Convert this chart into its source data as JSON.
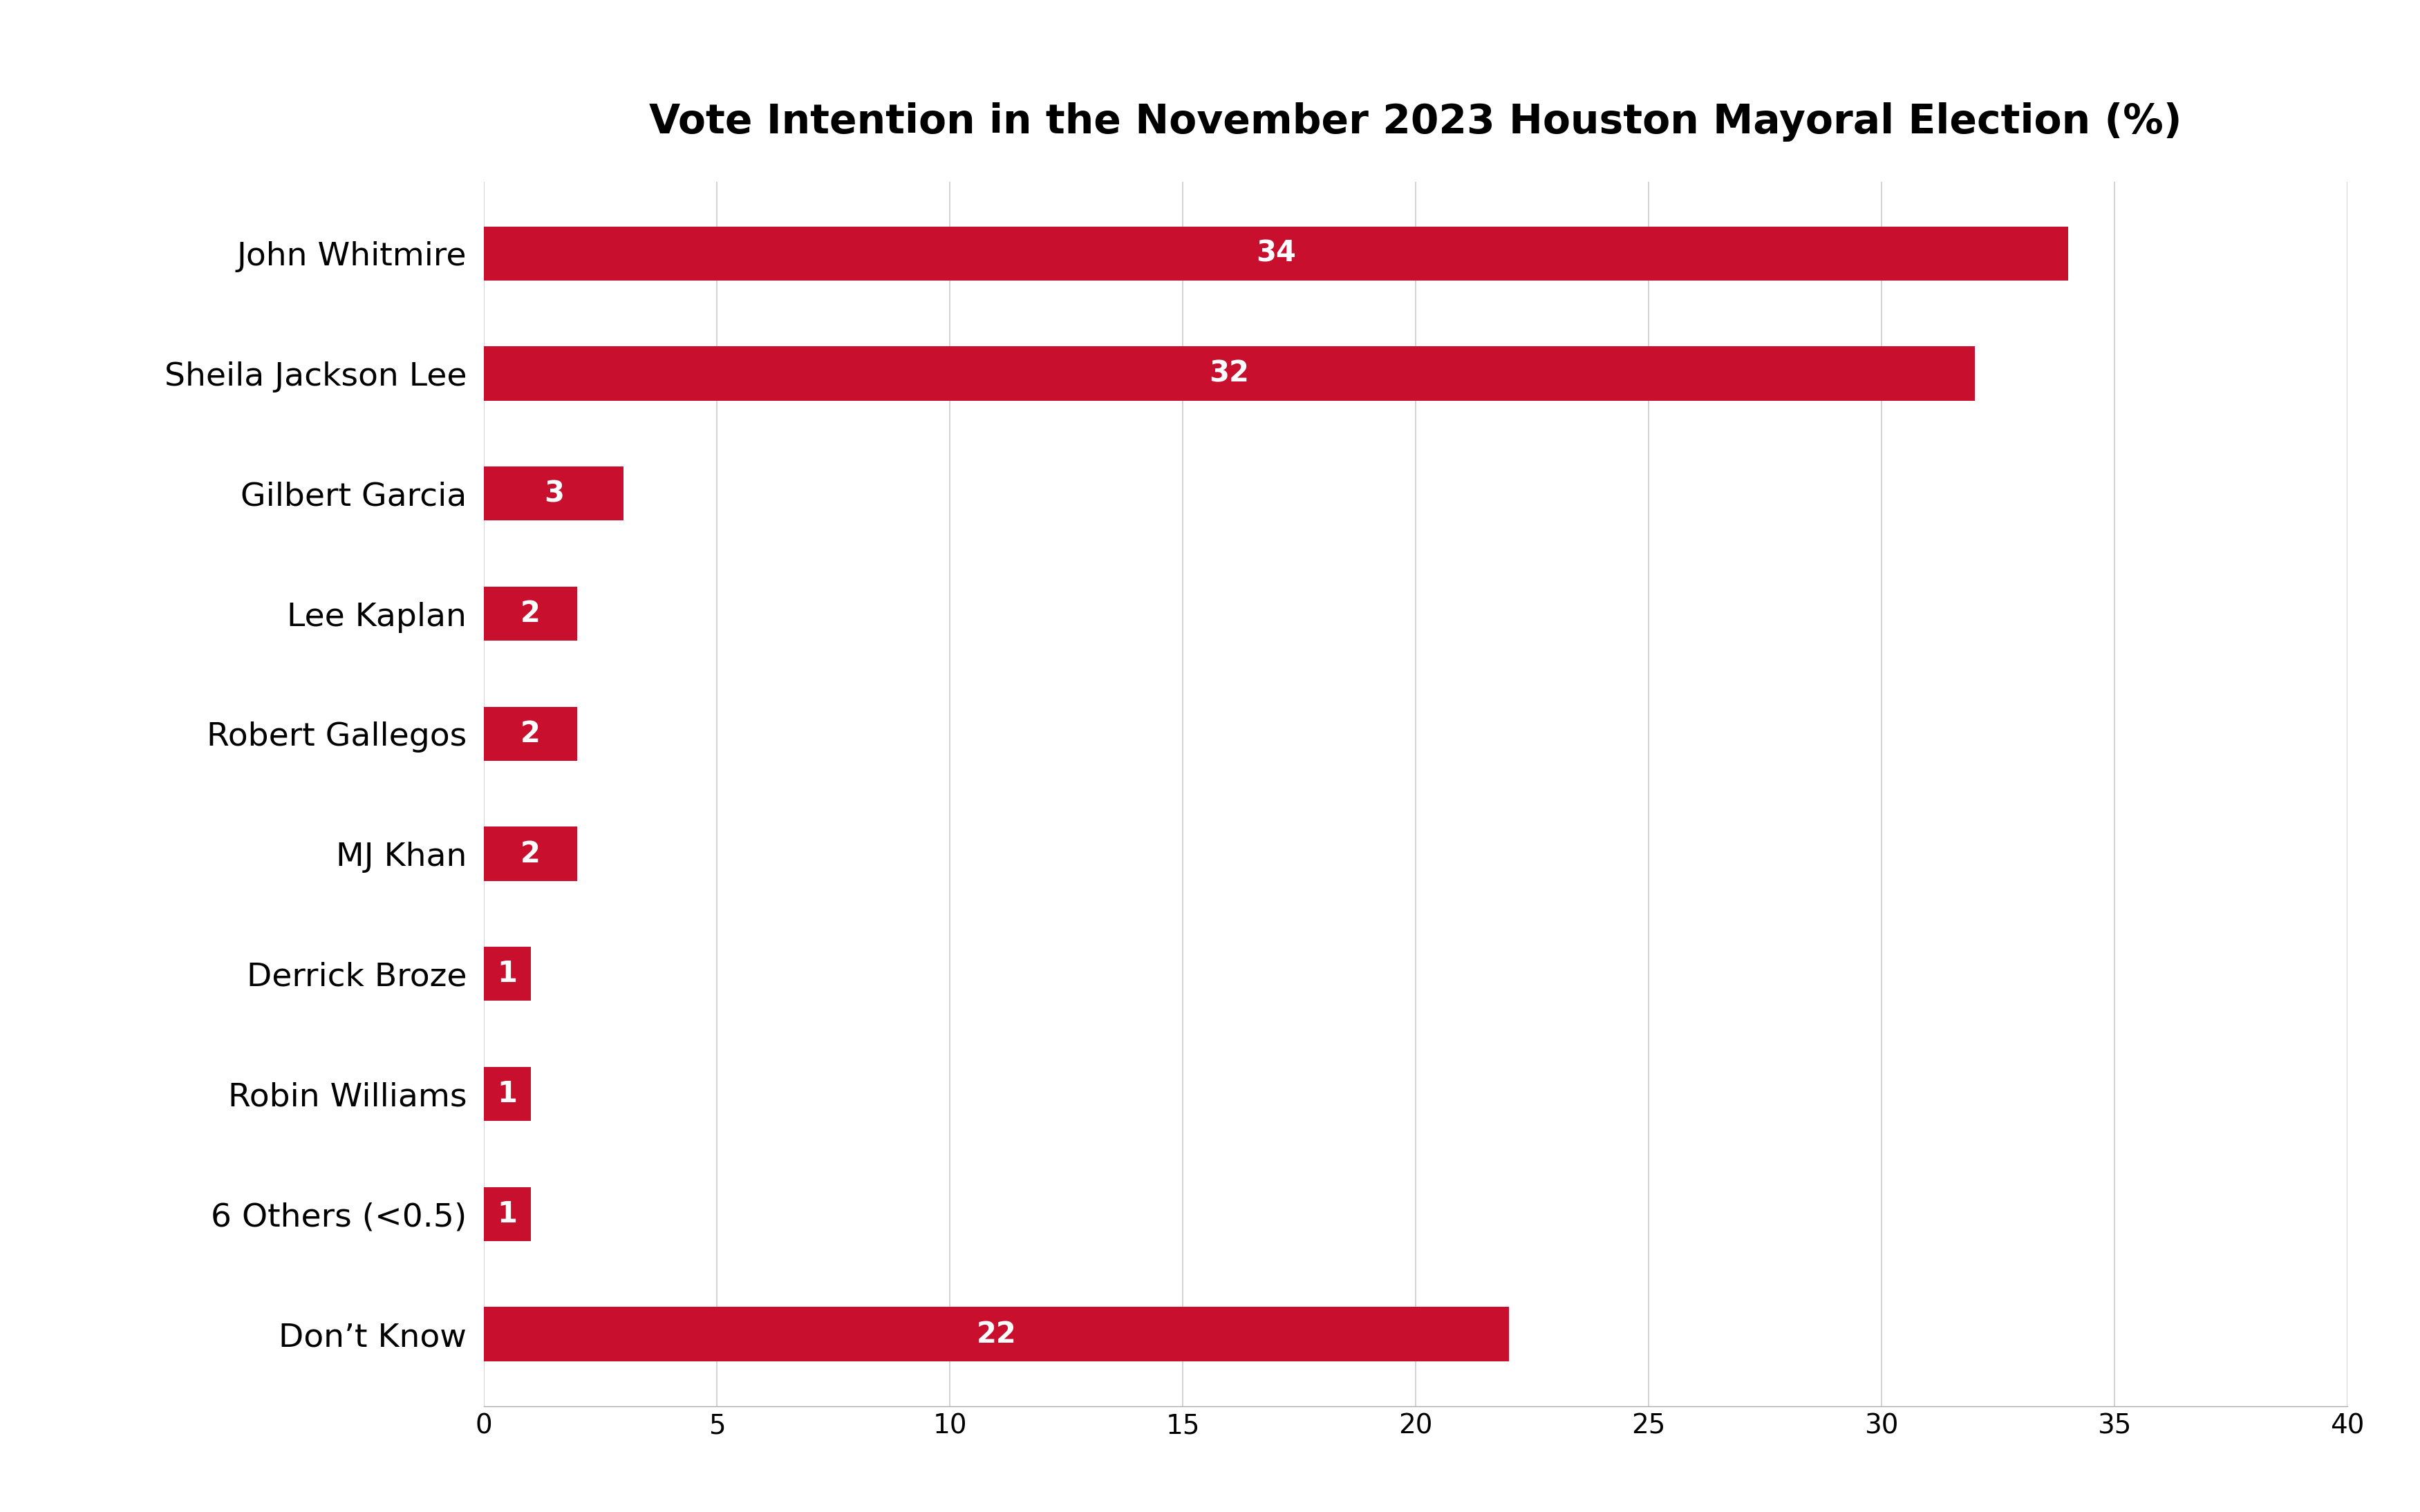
{
  "title": "Vote Intention in the November 2023 Houston Mayoral Election (%)",
  "categories": [
    "Don’t Know",
    "6 Others (<0.5)",
    "Robin Williams",
    "Derrick Broze",
    "MJ Khan",
    "Robert Gallegos",
    "Lee Kaplan",
    "Gilbert Garcia",
    "Sheila Jackson Lee",
    "John Whitmire"
  ],
  "values": [
    22,
    1,
    1,
    1,
    2,
    2,
    2,
    3,
    32,
    34
  ],
  "bar_color": "#C8102E",
  "label_color": "#FFFFFF",
  "title_fontsize": 42,
  "tick_label_fontsize": 34,
  "bar_label_fontsize": 30,
  "axis_tick_fontsize": 28,
  "xlim": [
    0,
    40
  ],
  "xticks": [
    0,
    5,
    10,
    15,
    20,
    25,
    30,
    35,
    40
  ],
  "background_color": "#FFFFFF",
  "grid_color": "#CCCCCC"
}
